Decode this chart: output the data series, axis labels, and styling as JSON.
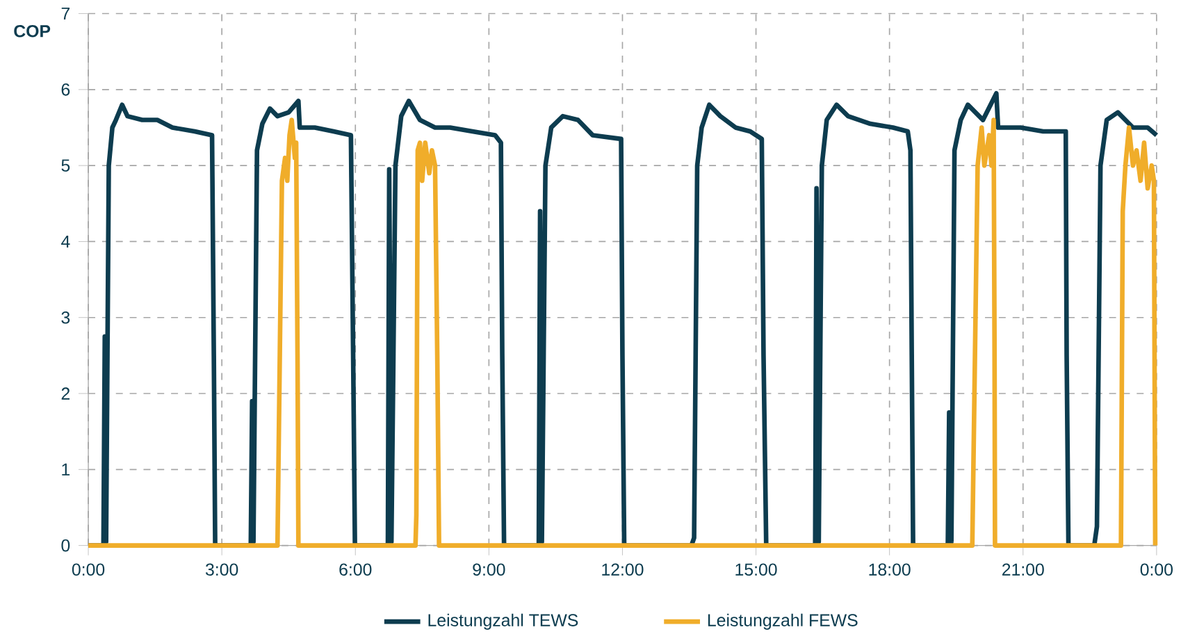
{
  "chart_data": {
    "type": "line",
    "ylabel": "COP",
    "xlim": [
      0,
      24
    ],
    "ylim": [
      0,
      7
    ],
    "xticks": [
      {
        "value": 0,
        "label": "0:00"
      },
      {
        "value": 3,
        "label": "3:00"
      },
      {
        "value": 6,
        "label": "6:00"
      },
      {
        "value": 9,
        "label": "9:00"
      },
      {
        "value": 12,
        "label": "12:00"
      },
      {
        "value": 15,
        "label": "15:00"
      },
      {
        "value": 18,
        "label": "18:00"
      },
      {
        "value": 21,
        "label": "21:00"
      },
      {
        "value": 24,
        "label": "0:00"
      }
    ],
    "yticks": [
      0,
      1,
      2,
      3,
      4,
      5,
      6,
      7
    ],
    "grid": true,
    "legend": "bottom",
    "series": [
      {
        "name": "Leistungzahl TEWS",
        "color": "#0d3c4f",
        "x": [
          0,
          0.34,
          0.37,
          0.4,
          0.46,
          0.54,
          0.62,
          0.76,
          0.88,
          1.21,
          1.55,
          1.89,
          2.39,
          2.78,
          2.82,
          2.85,
          3.65,
          3.68,
          3.71,
          3.79,
          3.91,
          4.08,
          4.25,
          4.5,
          4.72,
          4.75,
          5.09,
          5.51,
          5.9,
          5.95,
          5.99,
          6.73,
          6.76,
          6.81,
          6.9,
          7.03,
          7.2,
          7.45,
          7.79,
          8.13,
          8.63,
          9.14,
          9.27,
          9.3,
          9.34,
          10.12,
          10.15,
          10.19,
          10.27,
          10.4,
          10.66,
          11.0,
          11.33,
          11.97,
          12.0,
          12.04,
          13.55,
          13.61,
          13.68,
          13.78,
          13.95,
          14.2,
          14.54,
          14.87,
          15.13,
          15.17,
          15.23,
          16.33,
          16.36,
          16.41,
          16.48,
          16.59,
          16.81,
          17.07,
          17.57,
          18.08,
          18.41,
          18.47,
          18.5,
          18.53,
          19.31,
          19.34,
          19.39,
          19.46,
          19.6,
          19.76,
          20.1,
          20.4,
          20.44,
          20.95,
          21.45,
          21.96,
          21.98,
          22.02,
          22.6,
          22.66,
          22.74,
          22.88,
          23.13,
          23.47,
          23.8,
          24.0
        ],
        "values": [
          0,
          0,
          2.75,
          0.05,
          5.0,
          5.5,
          5.6,
          5.8,
          5.65,
          5.6,
          5.6,
          5.5,
          5.45,
          5.4,
          2.5,
          0,
          0,
          1.9,
          0.05,
          5.2,
          5.55,
          5.75,
          5.65,
          5.7,
          5.85,
          5.5,
          5.5,
          5.45,
          5.4,
          2.5,
          0,
          0,
          4.95,
          0.05,
          5.0,
          5.65,
          5.85,
          5.6,
          5.5,
          5.5,
          5.45,
          5.4,
          5.3,
          2.5,
          0,
          0,
          4.4,
          0.05,
          5.0,
          5.5,
          5.65,
          5.6,
          5.4,
          5.35,
          2.5,
          0,
          0,
          0.1,
          5.0,
          5.5,
          5.8,
          5.65,
          5.5,
          5.45,
          5.35,
          2.5,
          0,
          0,
          4.7,
          0.05,
          5.0,
          5.6,
          5.8,
          5.65,
          5.55,
          5.5,
          5.45,
          5.2,
          2.5,
          0,
          0,
          1.75,
          0.05,
          5.2,
          5.6,
          5.8,
          5.6,
          5.95,
          5.5,
          5.5,
          5.45,
          5.45,
          2.5,
          0,
          0,
          0.25,
          5.0,
          5.6,
          5.7,
          5.5,
          5.5,
          5.4
        ]
      },
      {
        "name": "Leistungzahl FEWS",
        "color": "#f0ad2a",
        "x": [
          0,
          4.25,
          4.35,
          4.42,
          4.47,
          4.52,
          4.57,
          4.64,
          4.67,
          4.7,
          4.72,
          7.35,
          7.37,
          7.4,
          7.45,
          7.5,
          7.57,
          7.66,
          7.72,
          7.79,
          7.84,
          7.88,
          19.86,
          19.98,
          20.07,
          20.13,
          20.24,
          20.29,
          20.34,
          20.36,
          20.37,
          23.2,
          23.24,
          23.3,
          23.38,
          23.47,
          23.55,
          23.64,
          23.72,
          23.8,
          23.89,
          23.94,
          23.97
        ],
        "values": [
          0,
          0,
          4.8,
          5.1,
          4.8,
          5.4,
          5.6,
          5.1,
          5.3,
          2.5,
          0,
          0,
          0.4,
          5.2,
          5.3,
          4.8,
          5.3,
          4.9,
          5.2,
          5.0,
          2.5,
          0,
          0,
          5.0,
          5.5,
          5.0,
          5.4,
          5.0,
          5.6,
          2.5,
          0,
          0,
          4.4,
          5.0,
          5.5,
          5.0,
          5.2,
          4.8,
          5.3,
          4.7,
          5.0,
          4.8,
          0
        ]
      }
    ]
  }
}
